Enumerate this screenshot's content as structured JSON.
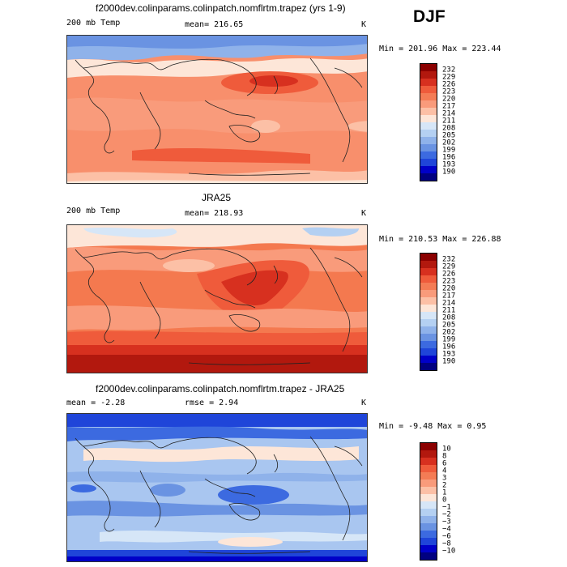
{
  "season": "DJF",
  "panels": [
    {
      "title": "f2000dev.colinparams.colinpatch.nomflrtm.trapez (yrs 1-9)",
      "left_label": "200 mb Temp",
      "center_label": "mean= 216.65",
      "unit": "K",
      "stats": "Min = 201.96 Max = 223.44",
      "colorbar_levels": [
        "232",
        "229",
        "226",
        "223",
        "220",
        "217",
        "214",
        "211",
        "208",
        "205",
        "202",
        "199",
        "196",
        "193",
        "190"
      ],
      "colorbar_colors": [
        "#8b0000",
        "#b2180e",
        "#d7301f",
        "#ef5b3b",
        "#f47c55",
        "#f99b7b",
        "#fcc0a6",
        "#fde6d8",
        "#d6e6f7",
        "#b4d0f2",
        "#8fb2ea",
        "#6a93e2",
        "#3c6ae0",
        "#1f45d9",
        "#0000c8",
        "#000080"
      ],
      "background": "#f88f6c"
    },
    {
      "title": "JRA25",
      "left_label": "200 mb Temp",
      "center_label": "mean= 218.93",
      "unit": "K",
      "stats": "Min = 210.53 Max = 226.88",
      "colorbar_levels": [
        "232",
        "229",
        "226",
        "223",
        "220",
        "217",
        "214",
        "211",
        "208",
        "205",
        "202",
        "199",
        "196",
        "193",
        "190"
      ],
      "colorbar_colors": [
        "#8b0000",
        "#b2180e",
        "#d7301f",
        "#ef5b3b",
        "#f47c55",
        "#f99b7b",
        "#fcc0a6",
        "#fde6d8",
        "#d6e6f7",
        "#b4d0f2",
        "#8fb2ea",
        "#6a93e2",
        "#3c6ae0",
        "#1f45d9",
        "#0000c8",
        "#000080"
      ],
      "background": "#f4794f"
    },
    {
      "title": "f2000dev.colinparams.colinpatch.nomflrtm.trapez - JRA25",
      "left_label": "mean =  -2.28",
      "center_label": "rmse =   2.94",
      "unit": "K",
      "stats": "Min =  -9.48 Max =   0.95",
      "colorbar_levels": [
        "10",
        "8",
        "6",
        "4",
        "3",
        "2",
        "1",
        "0",
        "−1",
        "−2",
        "−3",
        "−4",
        "−6",
        "−8",
        "−10"
      ],
      "colorbar_colors": [
        "#8b0000",
        "#b2180e",
        "#d7301f",
        "#ef5b3b",
        "#f47c55",
        "#f99b7b",
        "#fcc0a6",
        "#fde6d8",
        "#d6e6f7",
        "#b4d0f2",
        "#8fb2ea",
        "#6a93e2",
        "#3c6ae0",
        "#1f45d9",
        "#0000c8",
        "#000080"
      ],
      "background": "#a9c6f0"
    }
  ]
}
